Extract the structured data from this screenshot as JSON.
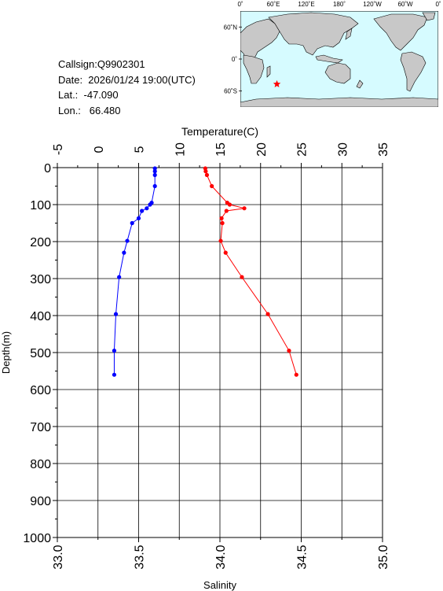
{
  "info": {
    "callsign": "Callsign:Q9902301",
    "date": "Date:  2026/01/24 19:00(UTC)",
    "lat": "Lat.:  -47.090",
    "lon": "Lon.:   66.480"
  },
  "map": {
    "top_labels": [
      "0˚",
      "60˚E",
      "120˚E",
      "180˚",
      "120˚W",
      "60˚W",
      "0˚"
    ],
    "side_labels": [
      "60˚N",
      "0˚",
      "60˚S"
    ],
    "station": {
      "lon": 66.48,
      "lat": -47.09
    },
    "colors": {
      "ocean": "#d6fbff",
      "land": "#c8c8c8",
      "marker": "#ff0000"
    }
  },
  "chart_data": {
    "type": "line",
    "ylabel": "Depth(m)",
    "ylim": [
      0,
      1000
    ],
    "y_ticks": [
      "0",
      "100",
      "200",
      "300",
      "400",
      "500",
      "600",
      "700",
      "800",
      "900",
      "1000"
    ],
    "x_top": {
      "label": "Temperature(C)",
      "range": [
        -5,
        35
      ],
      "ticks": [
        "-5",
        "0",
        "5",
        "10",
        "15",
        "20",
        "25",
        "30",
        "35"
      ]
    },
    "x_bottom": {
      "label": "Salinity",
      "range": [
        33.0,
        35.0
      ],
      "ticks": [
        "33.0",
        "33.5",
        "34.0",
        "34.5",
        "35.0"
      ]
    },
    "series": [
      {
        "color": "#ff0000",
        "axis": "temperature",
        "points": [
          [
            13.2,
            2
          ],
          [
            13.25,
            10
          ],
          [
            13.4,
            20
          ],
          [
            14.0,
            50
          ],
          [
            15.9,
            95
          ],
          [
            16.2,
            100
          ],
          [
            18.0,
            110
          ],
          [
            15.8,
            117
          ],
          [
            15.2,
            137
          ],
          [
            15.3,
            150
          ],
          [
            15.1,
            198
          ],
          [
            15.7,
            230
          ],
          [
            17.7,
            296
          ],
          [
            20.9,
            396
          ],
          [
            23.5,
            495
          ],
          [
            24.4,
            560
          ]
        ]
      },
      {
        "color": "#0000ff",
        "axis": "salinity",
        "points": [
          [
            33.6,
            2
          ],
          [
            33.6,
            10
          ],
          [
            33.6,
            20
          ],
          [
            33.6,
            50
          ],
          [
            33.58,
            95
          ],
          [
            33.57,
            100
          ],
          [
            33.55,
            110
          ],
          [
            33.52,
            117
          ],
          [
            33.5,
            137
          ],
          [
            33.46,
            150
          ],
          [
            33.43,
            198
          ],
          [
            33.41,
            230
          ],
          [
            33.38,
            296
          ],
          [
            33.36,
            396
          ],
          [
            33.35,
            495
          ],
          [
            33.35,
            560
          ]
        ]
      }
    ]
  }
}
